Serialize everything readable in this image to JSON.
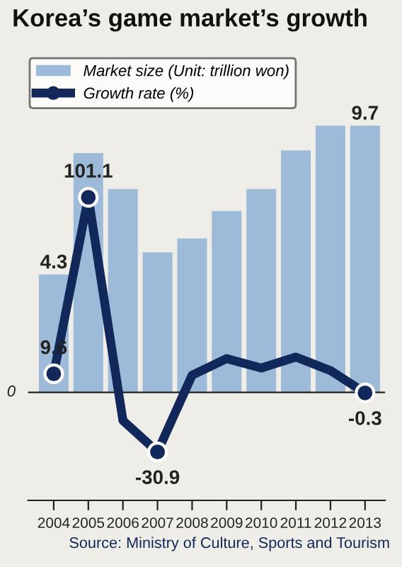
{
  "chart_data": {
    "type": "bar",
    "title": "Korea’s game market’s growth",
    "categories": [
      "2004",
      "2005",
      "2006",
      "2007",
      "2008",
      "2009",
      "2010",
      "2011",
      "2012",
      "2013"
    ],
    "series": [
      {
        "name": "Market size (Unit: trillion won)",
        "axis": "y2",
        "color": "#9dbbd9",
        "values": [
          4.3,
          8.7,
          7.4,
          5.1,
          5.6,
          6.6,
          7.4,
          8.8,
          9.7,
          9.7
        ],
        "value_labels": [
          "4.3",
          null,
          null,
          null,
          null,
          null,
          null,
          null,
          null,
          "9.7"
        ]
      },
      {
        "name": "Growth rate (%)",
        "type": "line",
        "axis": "y",
        "color": "#13285a",
        "values": [
          9.6,
          101.1,
          -14.6,
          -30.9,
          8.9,
          17.5,
          12.6,
          18.3,
          11.3,
          -0.3
        ],
        "value_labels": [
          "9.6",
          "101.1",
          null,
          "-30.9",
          null,
          null,
          null,
          null,
          null,
          "-0.3"
        ]
      }
    ],
    "ylim": [
      -56,
      174
    ],
    "y2lim": [
      -3.9,
      12.2
    ],
    "ref_lines": [
      {
        "axis": "y",
        "value": 0,
        "label": "0",
        "color": "#222222"
      }
    ],
    "line_style": "solid",
    "grid": false,
    "legend": "top left",
    "annotations": [
      "Source: Ministry of Culture, Sports and Tourism"
    ]
  }
}
